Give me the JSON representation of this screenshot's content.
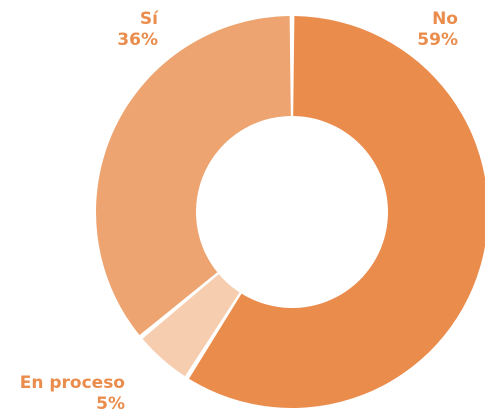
{
  "chart_data": {
    "type": "pie",
    "style": "donut",
    "title": "",
    "slices": [
      {
        "label": "No",
        "value": 59,
        "value_label": "59%",
        "color": "#EA8C4C",
        "label_color": "#EA8C4C"
      },
      {
        "label": "En proceso",
        "value": 5,
        "value_label": "5%",
        "color": "#F6CDAF",
        "label_color": "#EA8C4C"
      },
      {
        "label": "Sí",
        "value": 36,
        "value_label": "36%",
        "color": "#EDA470",
        "label_color": "#EA8C4C"
      }
    ]
  }
}
